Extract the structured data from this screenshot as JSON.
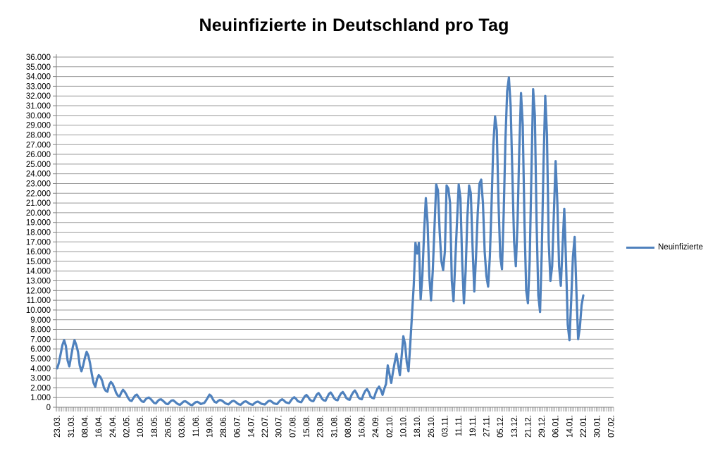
{
  "title": "Neuinfizierte in Deutschland pro Tag",
  "legend": {
    "label": "Neuinfizierte",
    "swatch_color": "#4F81BD",
    "position": "right"
  },
  "colors": {
    "line": "#4F81BD",
    "gridline": "#999999",
    "axis": "#808080",
    "text": "#000000",
    "background": "#ffffff"
  },
  "chart_data": {
    "type": "line",
    "title": "Neuinfizierte in Deutschland pro Tag",
    "xlabel": "",
    "ylabel": "",
    "ylim": [
      0,
      36000
    ],
    "y_tick_step": 1000,
    "grid": "horizontal",
    "legend_position": "right",
    "x_tick_label_rotation": -90,
    "label_every_n_points": 8,
    "total_category_slots": 322,
    "y_tick_labels": [
      "0",
      "1.000",
      "2.000",
      "3.000",
      "4.000",
      "5.000",
      "6.000",
      "7.000",
      "8.000",
      "9.000",
      "10.000",
      "11.000",
      "12.000",
      "13.000",
      "14.000",
      "15.000",
      "16.000",
      "17.000",
      "18.000",
      "19.000",
      "20.000",
      "21.000",
      "22.000",
      "23.000",
      "24.000",
      "25.000",
      "26.000",
      "27.000",
      "28.000",
      "29.000",
      "30.000",
      "31.000",
      "32.000",
      "33.000",
      "34.000",
      "35.000",
      "36.000"
    ],
    "x_tick_labels": [
      "23.03.",
      "31.03.",
      "08.04.",
      "16.04.",
      "24.04.",
      "02.05.",
      "10.05.",
      "18.05.",
      "26.05.",
      "03.06.",
      "11.06.",
      "19.06.",
      "28.06.",
      "06.07.",
      "14.07.",
      "22.07.",
      "30.07.",
      "07.08.",
      "15.08.",
      "23.08.",
      "31.08.",
      "08.09.",
      "16.09.",
      "24.09.",
      "02.10.",
      "10.10.",
      "18.10.",
      "26.10.",
      "03.11.",
      "11.11.",
      "19.11.",
      "27.11.",
      "05.12.",
      "13.12.",
      "21.12.",
      "29.12.",
      "06.01.",
      "14.01.",
      "22.01.",
      "30.01.",
      "07.02."
    ],
    "series": [
      {
        "name": "Neuinfizierte",
        "color": "#4F81BD",
        "values": [
          4000,
          4600,
          5500,
          6400,
          6900,
          6300,
          4800,
          4200,
          5200,
          6200,
          6900,
          6400,
          5700,
          4300,
          3700,
          4300,
          5100,
          5700,
          5300,
          4500,
          3400,
          2500,
          2100,
          2900,
          3300,
          3100,
          2700,
          2000,
          1700,
          1600,
          2300,
          2600,
          2400,
          2000,
          1500,
          1200,
          1100,
          1500,
          1800,
          1600,
          1300,
          950,
          700,
          650,
          950,
          1200,
          1300,
          1050,
          800,
          600,
          550,
          800,
          950,
          1000,
          850,
          650,
          450,
          400,
          620,
          780,
          820,
          680,
          520,
          360,
          320,
          520,
          680,
          720,
          580,
          420,
          300,
          260,
          420,
          580,
          620,
          520,
          380,
          260,
          220,
          380,
          520,
          560,
          470,
          330,
          400,
          450,
          700,
          1000,
          1300,
          1150,
          800,
          550,
          480,
          650,
          750,
          700,
          580,
          430,
          350,
          300,
          470,
          620,
          660,
          560,
          410,
          300,
          260,
          420,
          570,
          610,
          510,
          370,
          300,
          260,
          420,
          540,
          580,
          480,
          360,
          320,
          290,
          470,
          630,
          680,
          570,
          420,
          360,
          330,
          530,
          720,
          820,
          700,
          520,
          460,
          420,
          680,
          920,
          1030,
          870,
          630,
          560,
          520,
          820,
          1120,
          1260,
          1060,
          780,
          660,
          620,
          970,
          1310,
          1460,
          1210,
          870,
          720,
          670,
          1030,
          1370,
          1520,
          1270,
          920,
          770,
          720,
          1120,
          1420,
          1570,
          1320,
          970,
          820,
          770,
          1230,
          1530,
          1720,
          1430,
          1020,
          870,
          820,
          1330,
          1680,
          1870,
          1580,
          1120,
          970,
          920,
          1480,
          1890,
          2120,
          1780,
          1280,
          1900,
          2400,
          4300,
          3400,
          2500,
          3600,
          4600,
          5500,
          4400,
          3300,
          5200,
          7300,
          6500,
          4600,
          3700,
          6500,
          9500,
          12500,
          16900,
          15800,
          16900,
          11100,
          13500,
          18000,
          21500,
          19000,
          13500,
          11000,
          14000,
          18500,
          22900,
          22300,
          18000,
          15000,
          14100,
          16000,
          22800,
          22500,
          21000,
          13000,
          10900,
          15000,
          19000,
          22900,
          21500,
          15000,
          10700,
          14000,
          19500,
          22800,
          22000,
          16500,
          11900,
          15500,
          20000,
          23000,
          23400,
          21000,
          16000,
          13500,
          12400,
          15500,
          21000,
          27000,
          29900,
          28500,
          21000,
          15500,
          14200,
          20000,
          27500,
          32500,
          33900,
          31000,
          24000,
          17000,
          14500,
          19000,
          26500,
          32300,
          29000,
          19000,
          12000,
          10700,
          15000,
          24000,
          32700,
          30000,
          19000,
          11500,
          9800,
          16000,
          25000,
          32000,
          28000,
          17000,
          13000,
          14500,
          20000,
          25300,
          21000,
          14500,
          12500,
          16500,
          20400,
          15000,
          8500,
          6900,
          11000,
          15500,
          17500,
          12000,
          7000,
          8200,
          10500,
          11500
        ]
      }
    ]
  }
}
